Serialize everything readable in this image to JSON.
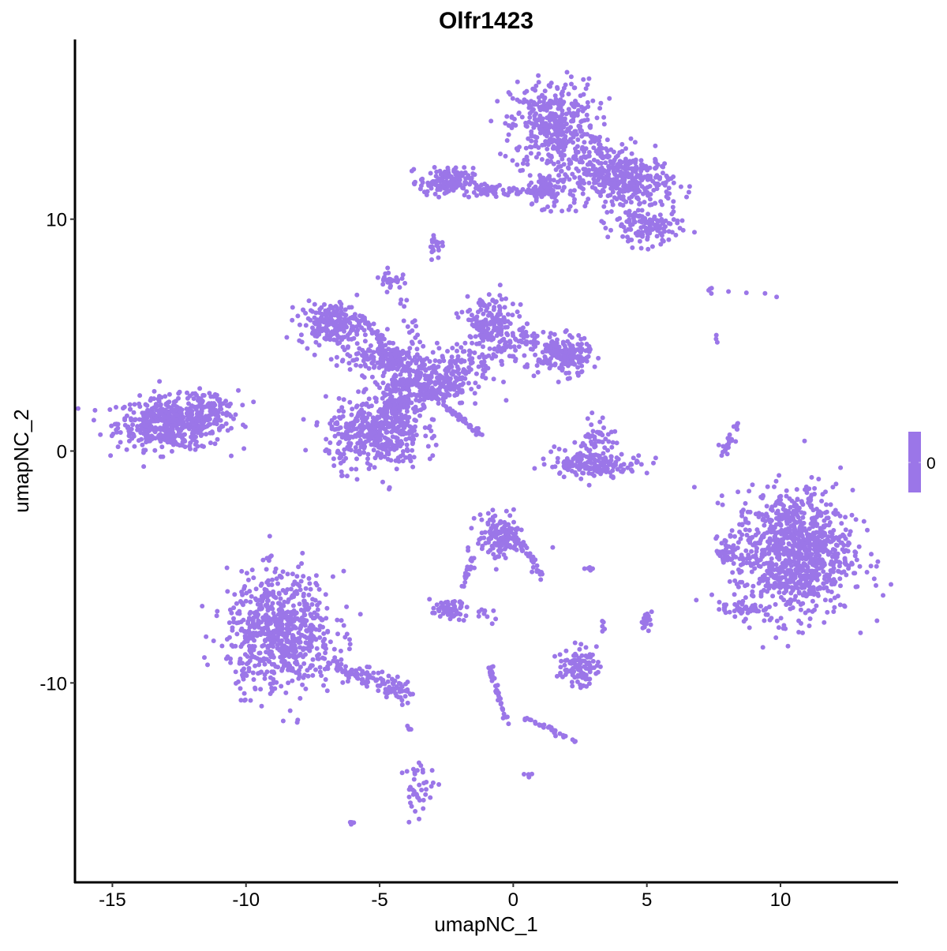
{
  "chart_data": {
    "type": "scatter",
    "title": "Olfr1423",
    "xlabel": "umapNC_1",
    "ylabel": "umapNC_2",
    "xlim": [
      -16.4,
      14.4
    ],
    "ylim": [
      -18.6,
      17.75
    ],
    "x_ticks": [
      -15,
      -10,
      -5,
      0,
      5,
      10
    ],
    "y_ticks": [
      -10,
      0,
      10
    ],
    "grid": false,
    "point_color": "#9b76e8",
    "legend": {
      "position": "right",
      "type": "colorbar",
      "labels": [
        "0"
      ],
      "color": "#9b76e8"
    },
    "note_values": "all cells have expression value 0",
    "clusters": [
      {
        "center": [
          -12.8,
          1.2
        ],
        "spread": [
          1.0,
          0.55
        ],
        "n": 500
      },
      {
        "center": [
          -11.3,
          1.8
        ],
        "spread": [
          0.5,
          0.4
        ],
        "n": 80
      },
      {
        "center": [
          1.5,
          14.0
        ],
        "spread": [
          0.8,
          1.0
        ],
        "n": 400
      },
      {
        "center": [
          4.4,
          11.6
        ],
        "spread": [
          0.8,
          0.6
        ],
        "n": 300
      },
      {
        "center": [
          5.0,
          9.6
        ],
        "spread": [
          0.6,
          0.4
        ],
        "n": 120
      },
      {
        "center": [
          3.3,
          12.6
        ],
        "spread": [
          0.6,
          0.6
        ],
        "n": 80
      },
      {
        "center": [
          -2.5,
          11.6
        ],
        "spread": [
          0.5,
          0.3
        ],
        "n": 150
      },
      {
        "center": [
          -1.5,
          11.3
        ],
        "to": [
          1.0,
          11.1
        ],
        "spread": [
          0.1,
          0.1
        ],
        "n": 60
      },
      {
        "center": [
          1.2,
          11.3
        ],
        "spread": [
          0.3,
          0.3
        ],
        "n": 80
      },
      {
        "center": [
          2.2,
          11.5
        ],
        "spread": [
          0.6,
          0.7
        ],
        "n": 50
      },
      {
        "center": [
          -2.9,
          8.9
        ],
        "spread": [
          0.15,
          0.3
        ],
        "n": 20
      },
      {
        "center": [
          -4.6,
          7.4
        ],
        "spread": [
          0.2,
          0.2
        ],
        "n": 30
      },
      {
        "center": [
          -6.8,
          5.5
        ],
        "spread": [
          0.6,
          0.45
        ],
        "n": 200
      },
      {
        "center": [
          -5.8,
          5.8
        ],
        "to": [
          -4.2,
          3.8
        ],
        "spread": [
          0.1,
          0.1
        ],
        "n": 40
      },
      {
        "center": [
          -5.0,
          4.0
        ],
        "spread": [
          0.8,
          0.35
        ],
        "n": 150
      },
      {
        "center": [
          -3.1,
          2.9
        ],
        "spread": [
          0.7,
          0.5
        ],
        "n": 250
      },
      {
        "center": [
          -5.2,
          0.7
        ],
        "spread": [
          0.9,
          0.75
        ],
        "n": 400
      },
      {
        "center": [
          -4.4,
          2.1
        ],
        "spread": [
          0.4,
          0.6
        ],
        "n": 150
      },
      {
        "center": [
          -0.9,
          5.5
        ],
        "spread": [
          0.5,
          0.6
        ],
        "n": 150
      },
      {
        "center": [
          -1.8,
          3.7
        ],
        "spread": [
          0.6,
          0.5
        ],
        "n": 80
      },
      {
        "center": [
          1.9,
          4.1
        ],
        "spread": [
          0.5,
          0.4
        ],
        "n": 200
      },
      {
        "center": [
          0.1,
          4.6
        ],
        "spread": [
          0.6,
          0.4
        ],
        "n": 80
      },
      {
        "center": [
          -4.3,
          7.0
        ],
        "to": [
          -3.3,
          3.8
        ],
        "spread": [
          0.1,
          0.1
        ],
        "n": 20
      },
      {
        "center": [
          -2.5,
          1.9
        ],
        "to": [
          -1.2,
          0.7
        ],
        "spread": [
          0.06,
          0.06
        ],
        "n": 40
      },
      {
        "center": [
          3.1,
          -0.6
        ],
        "spread": [
          0.9,
          0.22
        ],
        "n": 150
      },
      {
        "center": [
          3.2,
          0.7
        ],
        "spread": [
          0.3,
          0.4
        ],
        "n": 40
      },
      {
        "center": [
          2.7,
          0.0
        ],
        "spread": [
          0.7,
          0.5
        ],
        "n": 30
      },
      {
        "center": [
          7.8,
          -0.2
        ],
        "to": [
          8.4,
          1.2
        ],
        "spread": [
          0.06,
          0.06
        ],
        "n": 30
      },
      {
        "center": [
          10.5,
          -4.4
        ],
        "spread": [
          1.1,
          1.35
        ],
        "n": 1000
      },
      {
        "center": [
          8.0,
          -4.4
        ],
        "spread": [
          0.2,
          0.3
        ],
        "n": 30
      },
      {
        "center": [
          8.5,
          -6.8
        ],
        "spread": [
          0.4,
          0.15
        ],
        "n": 40
      },
      {
        "center": [
          -8.7,
          -7.8
        ],
        "spread": [
          1.0,
          1.25
        ],
        "n": 700
      },
      {
        "center": [
          -6.8,
          -9.2
        ],
        "to": [
          -3.8,
          -10.5
        ],
        "spread": [
          0.2,
          0.2
        ],
        "n": 120
      },
      {
        "center": [
          -0.45,
          -3.7
        ],
        "spread": [
          0.45,
          0.5
        ],
        "n": 150
      },
      {
        "center": [
          -1.5,
          -4.4
        ],
        "to": [
          -1.9,
          -5.9
        ],
        "spread": [
          0.06,
          0.06
        ],
        "n": 20
      },
      {
        "center": [
          0.3,
          -3.9
        ],
        "to": [
          1.1,
          -5.6
        ],
        "spread": [
          0.08,
          0.08
        ],
        "n": 30
      },
      {
        "center": [
          -2.4,
          -6.85
        ],
        "spread": [
          0.35,
          0.2
        ],
        "n": 60
      },
      {
        "center": [
          2.4,
          -9.3
        ],
        "spread": [
          0.35,
          0.4
        ],
        "n": 100
      },
      {
        "center": [
          -0.9,
          -9.2
        ],
        "to": [
          -0.2,
          -11.9
        ],
        "spread": [
          0.06,
          0.06
        ],
        "n": 40
      },
      {
        "center": [
          0.4,
          -11.5
        ],
        "to": [
          2.4,
          -12.5
        ],
        "spread": [
          0.06,
          0.06
        ],
        "n": 30
      },
      {
        "center": [
          -3.5,
          -14.6
        ],
        "spread": [
          0.3,
          0.6
        ],
        "n": 40
      },
      {
        "center": [
          -3.9,
          -11.9
        ],
        "spread": [
          0.05,
          0.08
        ],
        "n": 5
      },
      {
        "center": [
          5.0,
          -7.3
        ],
        "spread": [
          0.1,
          0.2
        ],
        "n": 20
      },
      {
        "center": [
          3.4,
          -7.5
        ],
        "spread": [
          0.1,
          0.1
        ],
        "n": 5
      },
      {
        "center": [
          2.8,
          -5.1
        ],
        "spread": [
          0.1,
          0.05
        ],
        "n": 5
      },
      {
        "center": [
          0.5,
          -14.0
        ],
        "spread": [
          0.08,
          0.05
        ],
        "n": 5
      },
      {
        "center": [
          -6.0,
          -16.0
        ],
        "spread": [
          0.08,
          0.05
        ],
        "n": 5
      },
      {
        "center": [
          -1.0,
          -7.1
        ],
        "spread": [
          0.3,
          0.15
        ],
        "n": 10
      },
      {
        "center": [
          6.9,
          6.9
        ],
        "to": [
          9.8,
          6.9
        ],
        "spread": [
          0.1,
          0.1
        ],
        "n": 8
      },
      {
        "center": [
          7.6,
          4.8
        ],
        "spread": [
          0.05,
          0.1
        ],
        "n": 3
      }
    ]
  }
}
